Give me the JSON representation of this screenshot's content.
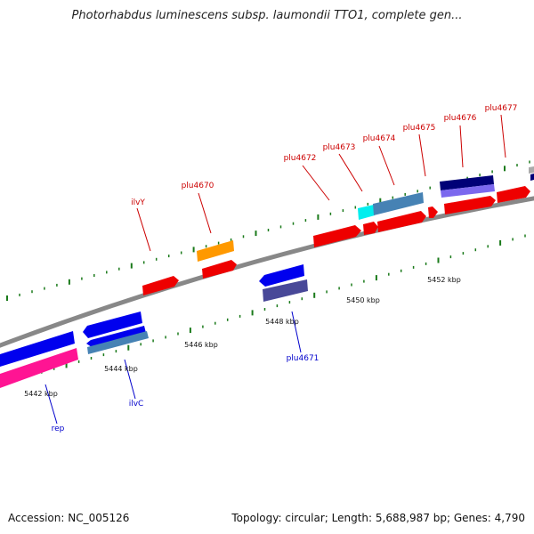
{
  "title": "Photorhabdus luminescens subsp. laumondii TTO1, complete gen...",
  "footer": {
    "accession": "Accession: NC_005126",
    "topology": "Topology: circular; Length: 5,688,987 bp; Genes: 4,790"
  },
  "colors": {
    "backbone": "#888888",
    "tick": "#1a7a1a",
    "forward_label": "#cc0000",
    "reverse_label": "#0000cc",
    "red": "#ee0000",
    "orange": "#ff9900",
    "blue": "#0000ee",
    "navy": "#000077",
    "slate": "#484898",
    "steel": "#4682b4",
    "cyan": "#00eeee",
    "pink": "#ff1493",
    "lavender": "#7b68ee"
  },
  "kbp_labels": [
    "5442 kbp",
    "5444 kbp",
    "5446 kbp",
    "5448 kbp",
    "5450 kbp",
    "5452 kbp"
  ],
  "gene_labels": {
    "forward": [
      "ilvY",
      "plu4670",
      "plu4672",
      "plu4673",
      "plu4674",
      "plu4675",
      "plu4676",
      "plu4677"
    ],
    "reverse": [
      "rep",
      "ilvC",
      "plu4671"
    ]
  }
}
